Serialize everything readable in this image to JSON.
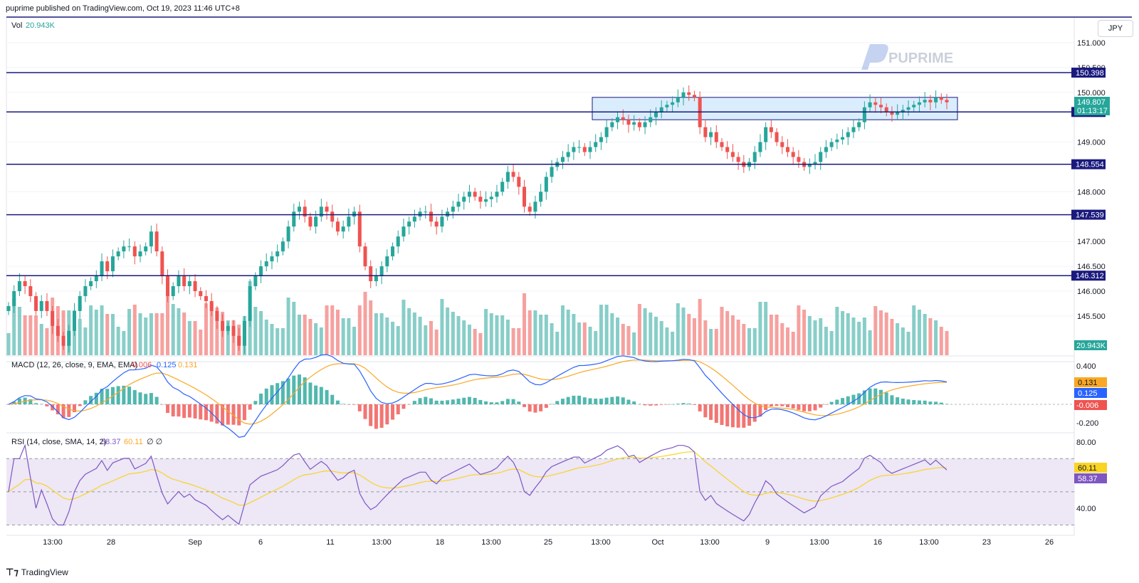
{
  "header": {
    "published": "puprime published on TradingView.com, Oct 19, 2023 11:46 UTC+8"
  },
  "watermark": {
    "text": "PUPRIME"
  },
  "footer": {
    "logo": "⊤⁊",
    "brand": "TradingView"
  },
  "currency": "JPY",
  "colors": {
    "up": "#26a69a",
    "down": "#ef5350",
    "level": "#1a1a7e",
    "zone_fill": "#bbdefb",
    "zone_stroke": "#1a1a7e",
    "macd": "#2962ff",
    "signal": "#f9a825",
    "rsi": "#7e57c2",
    "rsi_ma": "#f9d423",
    "rsi_band": "#ede7f6"
  },
  "chart_data": {
    "type": "candlestick",
    "price_axis": {
      "ylim": [
        145.0,
        151.25
      ],
      "ticks": [
        "151.000",
        "150.500",
        "150.000",
        "149.000",
        "148.000",
        "147.000",
        "146.500",
        "146.000",
        "145.500"
      ]
    },
    "horizontal_levels": [
      "150.398",
      "149.606",
      "148.554",
      "147.539",
      "146.312"
    ],
    "level_values": [
      150.398,
      149.606,
      148.554,
      147.539,
      146.312
    ],
    "current_price": {
      "value": "149.807",
      "countdown": "01:13:17"
    },
    "zone": {
      "low": 149.45,
      "high": 149.9
    },
    "x_ticks": [
      "13:00",
      "28",
      "Sep",
      "6",
      "11",
      "13:00",
      "18",
      "13:00",
      "25",
      "13:00",
      "Oct",
      "13:00",
      "9",
      "13:00",
      "16",
      "13:00",
      "23",
      "26"
    ],
    "volume": {
      "label": "Vol",
      "value": "20.943K"
    },
    "macd": {
      "label": "MACD (12, 26, close, 9, EMA, EMA)",
      "hist": "-0.006",
      "macd": "0.125",
      "signal": "0.131",
      "ticks": [
        "0.400",
        "-0.200"
      ]
    },
    "rsi": {
      "label": "RSI (14, close, SMA, 14, 2)",
      "value": "58.37",
      "ma": "60.11",
      "extra": "∅ ∅",
      "ticks": [
        "80.00",
        "40.00"
      ]
    },
    "closes": [
      145.7,
      146.0,
      146.2,
      146.1,
      145.9,
      145.6,
      145.8,
      145.6,
      145.3,
      145.1,
      144.9,
      145.2,
      145.6,
      145.9,
      146.1,
      146.2,
      146.3,
      146.6,
      146.4,
      146.7,
      146.8,
      146.9,
      146.9,
      146.7,
      146.8,
      146.9,
      147.2,
      146.8,
      146.3,
      145.9,
      146.1,
      146.3,
      146.1,
      146.2,
      146.0,
      145.9,
      145.8,
      145.6,
      145.4,
      145.2,
      145.3,
      145.1,
      144.9,
      145.4,
      146.1,
      146.3,
      146.5,
      146.6,
      146.7,
      146.8,
      147.0,
      147.3,
      147.6,
      147.7,
      147.5,
      147.3,
      147.5,
      147.7,
      147.6,
      147.4,
      147.2,
      147.3,
      147.5,
      147.6,
      146.9,
      146.5,
      146.2,
      146.3,
      146.5,
      146.7,
      146.9,
      147.1,
      147.3,
      147.4,
      147.5,
      147.6,
      147.6,
      147.4,
      147.3,
      147.5,
      147.6,
      147.7,
      147.8,
      147.9,
      148.0,
      147.9,
      147.8,
      147.85,
      147.9,
      148.0,
      148.2,
      148.4,
      148.3,
      148.1,
      147.7,
      147.6,
      147.8,
      148.0,
      148.3,
      148.5,
      148.6,
      148.7,
      148.8,
      148.9,
      148.9,
      148.8,
      148.9,
      149.0,
      149.1,
      149.3,
      149.4,
      149.5,
      149.45,
      149.35,
      149.4,
      149.3,
      149.4,
      149.5,
      149.6,
      149.7,
      149.75,
      149.8,
      149.9,
      150.0,
      149.95,
      149.9,
      149.3,
      149.1,
      149.2,
      149.0,
      148.9,
      148.8,
      148.7,
      148.6,
      148.5,
      148.6,
      148.8,
      149.0,
      149.3,
      149.2,
      149.0,
      148.9,
      148.8,
      148.7,
      148.6,
      148.5,
      148.55,
      148.6,
      148.8,
      148.9,
      149.0,
      149.05,
      149.1,
      149.2,
      149.3,
      149.4,
      149.7,
      149.8,
      149.75,
      149.7,
      149.6,
      149.55,
      149.6,
      149.65,
      149.7,
      149.75,
      149.8,
      149.85,
      149.8,
      149.9,
      149.85,
      149.8
    ]
  }
}
